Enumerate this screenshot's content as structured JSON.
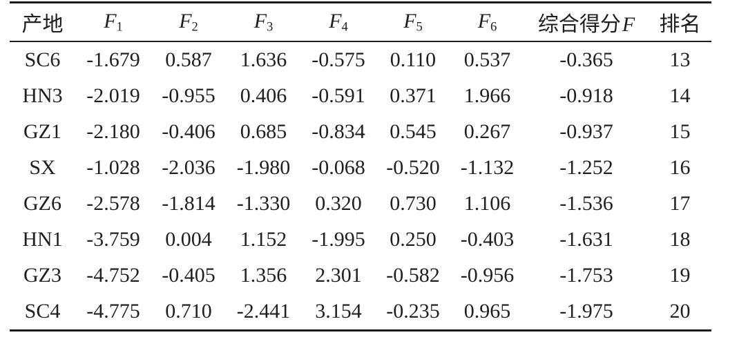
{
  "table": {
    "columns": [
      {
        "key": "origin",
        "label": "产地"
      },
      {
        "key": "f1",
        "base": "F",
        "sub": "1"
      },
      {
        "key": "f2",
        "base": "F",
        "sub": "2"
      },
      {
        "key": "f3",
        "base": "F",
        "sub": "3"
      },
      {
        "key": "f4",
        "base": "F",
        "sub": "4"
      },
      {
        "key": "f5",
        "base": "F",
        "sub": "5"
      },
      {
        "key": "f6",
        "base": "F",
        "sub": "6"
      },
      {
        "key": "score",
        "label": "综合得分",
        "base": "F"
      },
      {
        "key": "rank",
        "label": "排名"
      }
    ],
    "rows": [
      [
        "SC6",
        "-1.679",
        "0.587",
        "1.636",
        "-0.575",
        "0.110",
        "0.537",
        "-0.365",
        "13"
      ],
      [
        "HN3",
        "-2.019",
        "-0.955",
        "0.406",
        "-0.591",
        "0.371",
        "1.966",
        "-0.918",
        "14"
      ],
      [
        "GZ1",
        "-2.180",
        "-0.406",
        "0.685",
        "-0.834",
        "0.545",
        "0.267",
        "-0.937",
        "15"
      ],
      [
        "SX",
        "-1.028",
        "-2.036",
        "-1.980",
        "-0.068",
        "-0.520",
        "-1.132",
        "-1.252",
        "16"
      ],
      [
        "GZ6",
        "-2.578",
        "-1.814",
        "-1.330",
        "0.320",
        "0.730",
        "1.106",
        "-1.536",
        "17"
      ],
      [
        "HN1",
        "-3.759",
        "0.004",
        "1.152",
        "-1.995",
        "0.250",
        "-0.403",
        "-1.631",
        "18"
      ],
      [
        "GZ3",
        "-4.752",
        "-0.405",
        "1.356",
        "2.301",
        "-0.582",
        "-0.956",
        "-1.753",
        "19"
      ],
      [
        "SC4",
        "-4.775",
        "0.710",
        "-2.441",
        "3.154",
        "-0.235",
        "0.965",
        "-1.975",
        "20"
      ]
    ],
    "colors": {
      "text": "#1f1f1f",
      "rule": "#1b1b1b",
      "background": "#ffffff"
    }
  },
  "chart_data": {
    "type": "table",
    "title": "",
    "columns": [
      "产地",
      "F1",
      "F2",
      "F3",
      "F4",
      "F5",
      "F6",
      "综合得分F",
      "排名"
    ],
    "rows": [
      [
        "SC6",
        -1.679,
        0.587,
        1.636,
        -0.575,
        0.11,
        0.537,
        -0.365,
        13
      ],
      [
        "HN3",
        -2.019,
        -0.955,
        0.406,
        -0.591,
        0.371,
        1.966,
        -0.918,
        14
      ],
      [
        "GZ1",
        -2.18,
        -0.406,
        0.685,
        -0.834,
        0.545,
        0.267,
        -0.937,
        15
      ],
      [
        "SX",
        -1.028,
        -2.036,
        -1.98,
        -0.068,
        -0.52,
        -1.132,
        -1.252,
        16
      ],
      [
        "GZ6",
        -2.578,
        -1.814,
        -1.33,
        0.32,
        0.73,
        1.106,
        -1.536,
        17
      ],
      [
        "HN1",
        -3.759,
        0.004,
        1.152,
        -1.995,
        0.25,
        -0.403,
        -1.631,
        18
      ],
      [
        "GZ3",
        -4.752,
        -0.405,
        1.356,
        2.301,
        -0.582,
        -0.956,
        -1.753,
        19
      ],
      [
        "SC4",
        -4.775,
        0.71,
        -2.441,
        3.154,
        -0.235,
        0.965,
        -1.975,
        20
      ]
    ]
  }
}
